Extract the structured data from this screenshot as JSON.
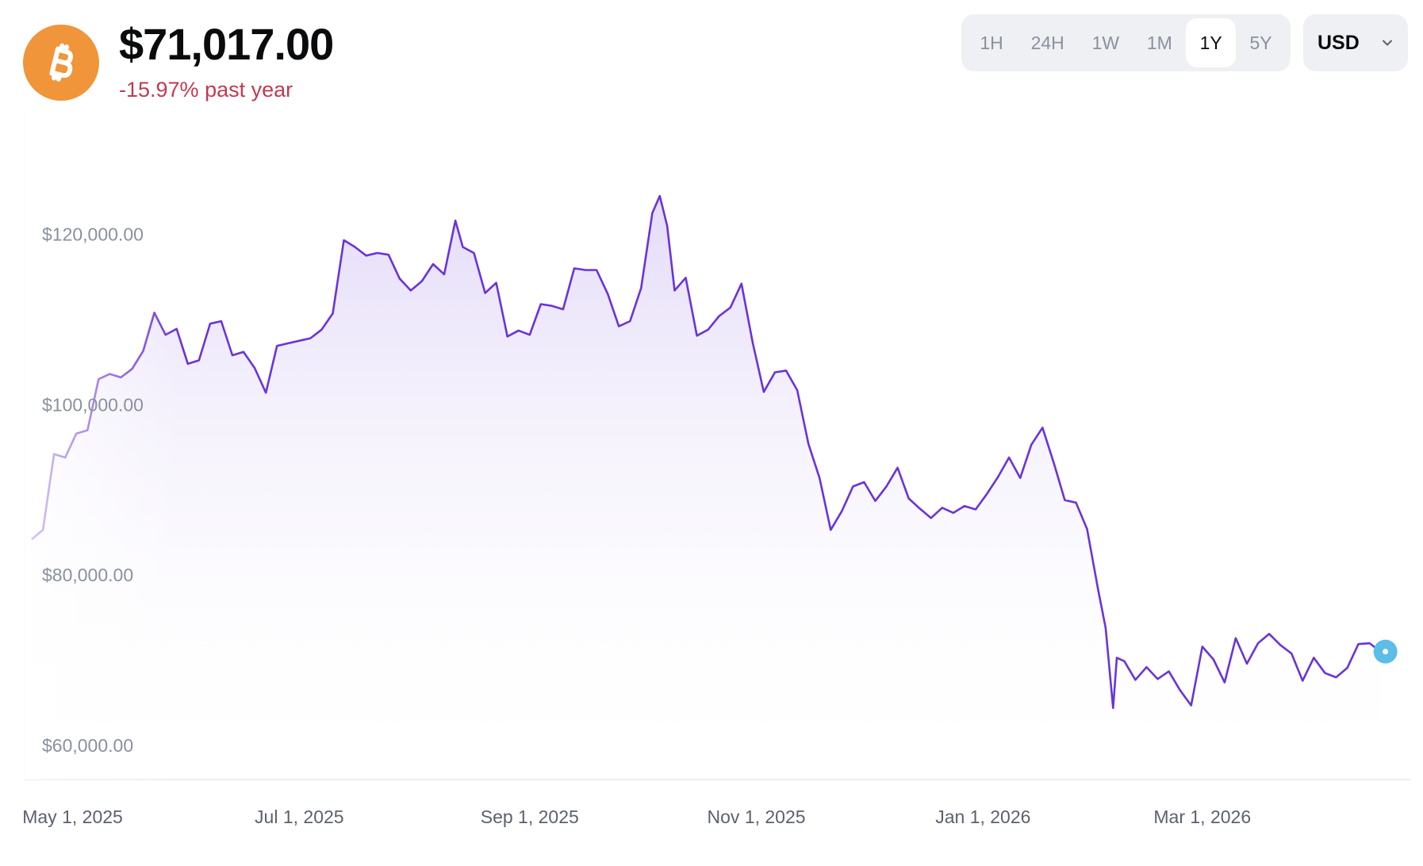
{
  "header": {
    "coin_icon": "bitcoin-icon",
    "price": "$71,017.00",
    "change": "-15.97% past year",
    "change_color": "#c23a50"
  },
  "range_tabs": {
    "items": [
      "1H",
      "24H",
      "1W",
      "1M",
      "1Y",
      "5Y"
    ],
    "selected": "1Y"
  },
  "currency": {
    "selected": "USD",
    "icon": "chevron-down-icon"
  },
  "colors": {
    "line": "#6a34d9",
    "fill_top": "#e7dff9",
    "reference_line": "#5bbde8",
    "marker": "#5bbde8"
  },
  "chart_data": {
    "type": "area",
    "title": "",
    "xlabel": "",
    "ylabel": "",
    "y_ticks": [
      {
        "value": 120000,
        "label": "$120,000.00"
      },
      {
        "value": 100000,
        "label": "$100,000.00"
      },
      {
        "value": 80000,
        "label": "$80,000.00"
      },
      {
        "value": 60000,
        "label": "$60,000.00"
      }
    ],
    "x_ticks": [
      {
        "value": "2025-05-01",
        "label": "May 1, 2025"
      },
      {
        "value": "2025-07-01",
        "label": "Jul 1, 2025"
      },
      {
        "value": "2025-09-01",
        "label": "Sep 1, 2025"
      },
      {
        "value": "2025-11-01",
        "label": "Nov 1, 2025"
      },
      {
        "value": "2026-01-01",
        "label": "Jan 1, 2026"
      },
      {
        "value": "2026-03-01",
        "label": "Mar 1, 2026"
      }
    ],
    "ylim": [
      56000,
      134000
    ],
    "xlim": [
      "2025-04-20",
      "2026-04-20"
    ],
    "current_value": 71017,
    "grid": false,
    "series": [
      {
        "x": [
          "2025-04-20",
          "2025-04-23",
          "2025-04-26",
          "2025-04-29",
          "2025-05-02",
          "2025-05-05",
          "2025-05-08",
          "2025-05-11",
          "2025-05-14",
          "2025-05-17",
          "2025-05-20",
          "2025-05-23",
          "2025-05-26",
          "2025-05-29",
          "2025-06-01",
          "2025-06-04",
          "2025-06-07",
          "2025-06-10",
          "2025-06-13",
          "2025-06-16",
          "2025-06-19",
          "2025-06-22",
          "2025-06-25",
          "2025-06-28",
          "2025-07-01",
          "2025-07-04",
          "2025-07-07",
          "2025-07-10",
          "2025-07-13",
          "2025-07-16",
          "2025-07-19",
          "2025-07-22",
          "2025-07-25",
          "2025-07-28",
          "2025-07-31",
          "2025-08-03",
          "2025-08-06",
          "2025-08-09",
          "2025-08-12",
          "2025-08-14",
          "2025-08-17",
          "2025-08-20",
          "2025-08-23",
          "2025-08-26",
          "2025-08-29",
          "2025-09-01",
          "2025-09-04",
          "2025-09-07",
          "2025-09-10",
          "2025-09-13",
          "2025-09-16",
          "2025-09-19",
          "2025-09-22",
          "2025-09-25",
          "2025-09-28",
          "2025-10-01",
          "2025-10-04",
          "2025-10-06",
          "2025-10-08",
          "2025-10-10",
          "2025-10-13",
          "2025-10-16",
          "2025-10-19",
          "2025-10-22",
          "2025-10-25",
          "2025-10-28",
          "2025-10-31",
          "2025-11-03",
          "2025-11-06",
          "2025-11-09",
          "2025-11-12",
          "2025-11-15",
          "2025-11-18",
          "2025-11-21",
          "2025-11-24",
          "2025-11-27",
          "2025-11-30",
          "2025-12-03",
          "2025-12-06",
          "2025-12-09",
          "2025-12-12",
          "2025-12-15",
          "2025-12-18",
          "2025-12-21",
          "2025-12-24",
          "2025-12-27",
          "2025-12-30",
          "2026-01-02",
          "2026-01-05",
          "2026-01-08",
          "2026-01-11",
          "2026-01-14",
          "2026-01-17",
          "2026-01-20",
          "2026-01-23",
          "2026-01-26",
          "2026-01-29",
          "2026-02-01",
          "2026-02-03",
          "2026-02-05",
          "2026-02-06",
          "2026-02-08",
          "2026-02-11",
          "2026-02-14",
          "2026-02-17",
          "2026-02-20",
          "2026-02-23",
          "2026-02-26",
          "2026-03-01",
          "2026-03-04",
          "2026-03-07",
          "2026-03-10",
          "2026-03-13",
          "2026-03-16",
          "2026-03-19",
          "2026-03-22",
          "2026-03-25",
          "2026-03-28",
          "2026-03-31",
          "2026-04-03",
          "2026-04-06",
          "2026-04-09",
          "2026-04-12",
          "2026-04-15",
          "2026-04-18"
        ],
        "values": [
          84200,
          85300,
          94200,
          93800,
          96600,
          97000,
          103000,
          103600,
          103200,
          104200,
          106300,
          110800,
          108200,
          108900,
          104800,
          105200,
          109500,
          109800,
          105800,
          106200,
          104300,
          101400,
          106900,
          107200,
          107500,
          107800,
          108800,
          110700,
          119300,
          118500,
          117500,
          117800,
          117600,
          114800,
          113400,
          114500,
          116500,
          115300,
          121600,
          118500,
          117800,
          113100,
          114300,
          108000,
          108700,
          108200,
          111800,
          111600,
          111200,
          116000,
          115800,
          115800,
          113000,
          109200,
          109800,
          113700,
          122500,
          124500,
          121000,
          113400,
          114900,
          108100,
          108800,
          110400,
          111400,
          114200,
          107300,
          101500,
          103800,
          104000,
          101700,
          95400,
          91400,
          85300,
          87500,
          90400,
          90900,
          88700,
          90400,
          92600,
          89000,
          87800,
          86700,
          87900,
          87300,
          88100,
          87700,
          89500,
          91500,
          93800,
          91400,
          95300,
          97300,
          93200,
          88800,
          88500,
          85400,
          78200,
          73800,
          64400,
          70300,
          69900,
          67700,
          69200,
          67800,
          68700,
          66500,
          64700,
          71600,
          70100,
          67400,
          72600,
          69600,
          72000,
          73100,
          71800,
          70800,
          67600,
          70300,
          68500,
          68000,
          69100,
          71900,
          72000,
          71017
        ]
      }
    ]
  }
}
